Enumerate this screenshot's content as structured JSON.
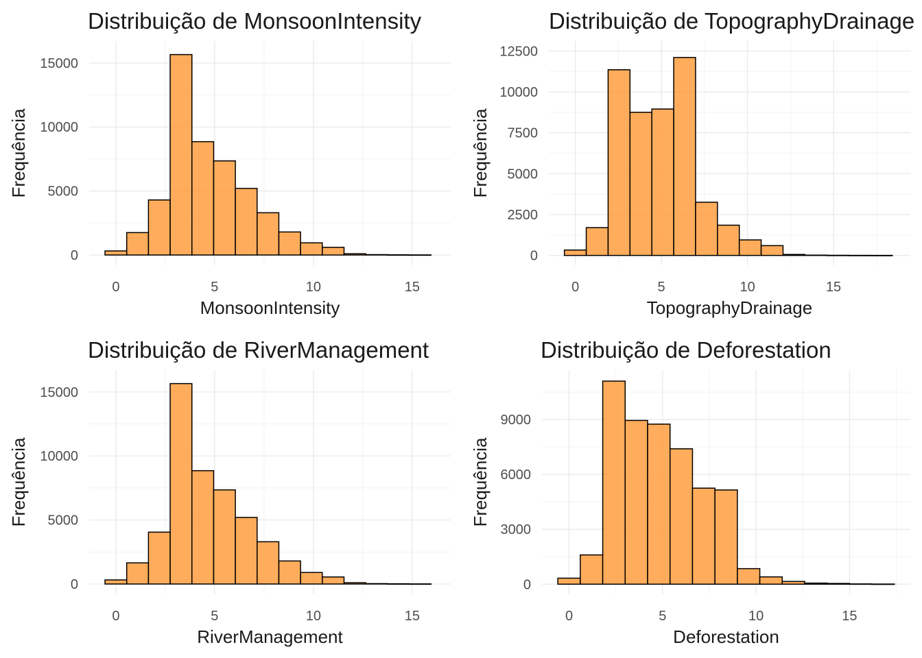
{
  "figure": {
    "bar_color": "#FF9933",
    "bar_opacity": 0.8,
    "bar_outline": "#000000"
  },
  "chart_data": [
    {
      "type": "bar",
      "title": "Distribuição de MonsoonIntensity",
      "xlabel": "MonsoonIntensity",
      "ylabel": "Frequência",
      "bin_width": 1.1,
      "bin_centers": [
        0,
        1.1,
        2.2,
        3.3,
        4.4,
        5.5,
        6.6,
        7.7,
        8.8,
        9.9,
        11,
        12.1,
        13.2,
        14.3,
        15.4
      ],
      "values": [
        320,
        1750,
        4300,
        15650,
        8850,
        7350,
        5200,
        3300,
        1800,
        950,
        600,
        100,
        30,
        15,
        8
      ],
      "xlim": [
        -1.35,
        16.95
      ],
      "ylim": [
        -800,
        16700
      ],
      "xticks": [
        "0",
        "5",
        "10",
        "15"
      ],
      "yticks": [
        "0",
        "5000",
        "10000",
        "15000"
      ],
      "grid": true
    },
    {
      "type": "bar",
      "title": "Distribuição de TopographyDrainage",
      "xlabel": "TopographyDrainage",
      "ylabel": "Frequência",
      "bin_width": 1.27,
      "bin_centers": [
        0,
        1.27,
        2.54,
        3.81,
        5.08,
        6.35,
        7.62,
        8.89,
        10.16,
        11.43,
        12.7,
        13.97,
        15.24,
        16.51,
        17.78
      ],
      "values": [
        330,
        1700,
        11350,
        8750,
        8950,
        12100,
        3250,
        1850,
        950,
        600,
        60,
        20,
        10,
        5,
        3
      ],
      "xlim": [
        -1.54,
        19.46
      ],
      "ylim": [
        -600,
        13100
      ],
      "xticks": [
        "0",
        "5",
        "10",
        "15"
      ],
      "yticks": [
        "0",
        "2500",
        "5000",
        "7500",
        "10000",
        "12500"
      ],
      "grid": true
    },
    {
      "type": "bar",
      "title": "Distribuição de RiverManagement",
      "xlabel": "RiverManagement",
      "ylabel": "Frequência",
      "bin_width": 1.1,
      "bin_centers": [
        0,
        1.1,
        2.2,
        3.3,
        4.4,
        5.5,
        6.6,
        7.7,
        8.8,
        9.9,
        11,
        12.1,
        13.2,
        14.3,
        15.4
      ],
      "values": [
        320,
        1650,
        4050,
        15650,
        8850,
        7350,
        5200,
        3300,
        1800,
        900,
        550,
        100,
        30,
        15,
        8
      ],
      "xlim": [
        -1.35,
        16.95
      ],
      "ylim": [
        -800,
        16700
      ],
      "xticks": [
        "0",
        "5",
        "10",
        "15"
      ],
      "yticks": [
        "0",
        "5000",
        "10000",
        "15000"
      ],
      "grid": true
    },
    {
      "type": "bar",
      "title": "Distribuição de Deforestation",
      "xlabel": "Deforestation",
      "ylabel": "Frequência",
      "bin_width": 1.2,
      "bin_centers": [
        0,
        1.2,
        2.4,
        3.6,
        4.8,
        6,
        7.2,
        8.4,
        9.6,
        10.8,
        12,
        13.2,
        14.4,
        15.6,
        16.8
      ],
      "values": [
        330,
        1600,
        11100,
        8950,
        8750,
        7400,
        5250,
        5150,
        850,
        400,
        150,
        60,
        40,
        15,
        8
      ],
      "xlim": [
        -1.45,
        18.25
      ],
      "ylim": [
        -550,
        11700
      ],
      "xticks": [
        "0",
        "5",
        "10",
        "15"
      ],
      "yticks": [
        "0",
        "3000",
        "6000",
        "9000"
      ],
      "grid": true
    }
  ]
}
